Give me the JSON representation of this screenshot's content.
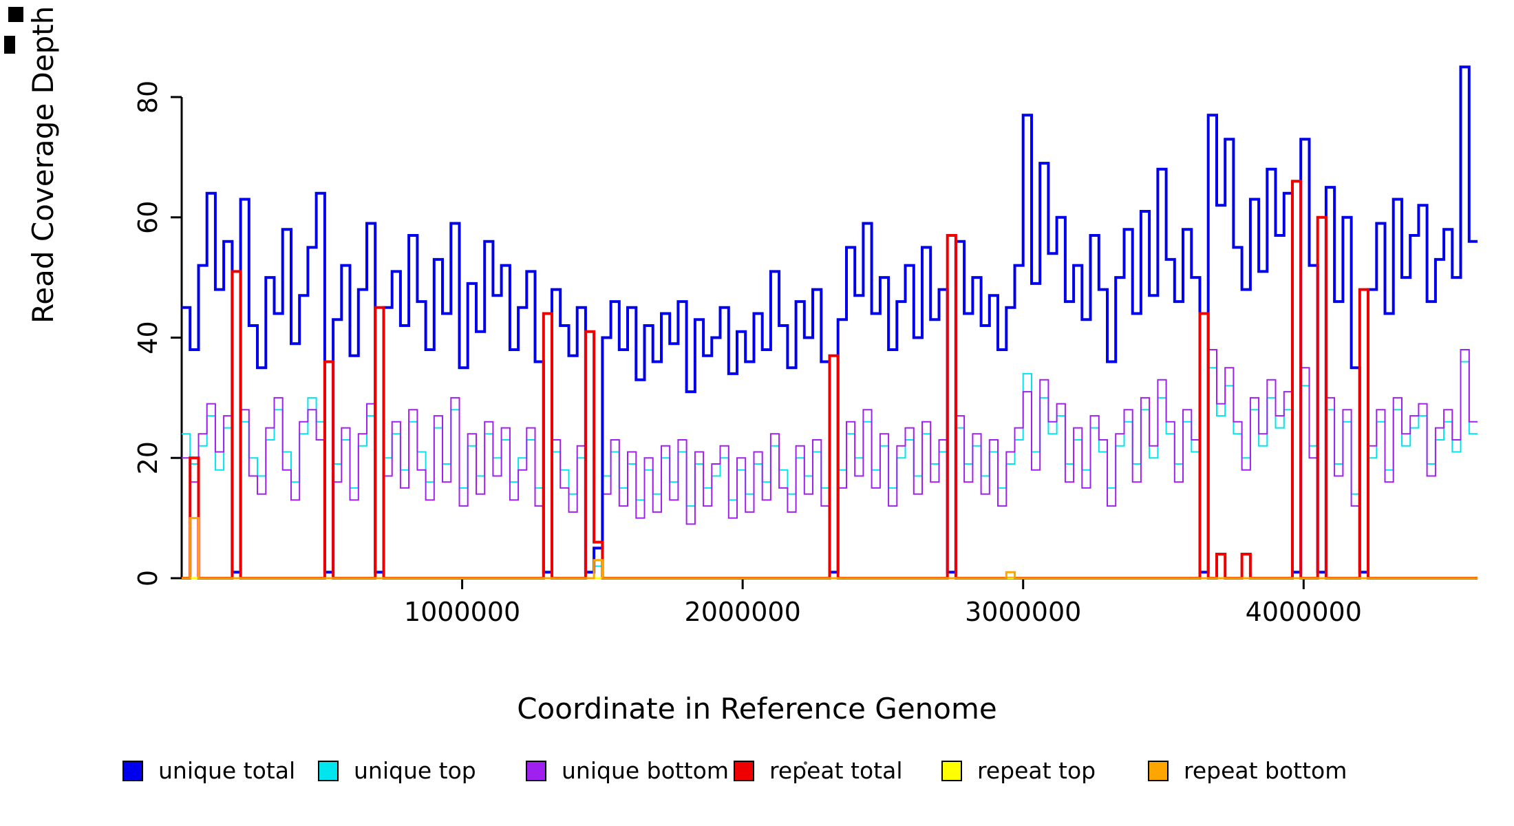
{
  "chart_data": {
    "type": "line",
    "subtype": "step",
    "title": "",
    "xlabel": "Coordinate in Reference Genome",
    "ylabel": "Read Coverage Depth",
    "xlim": [
      0,
      4620000
    ],
    "ylim": [
      0,
      85
    ],
    "x_ticks": [
      1000000,
      2000000,
      3000000,
      4000000
    ],
    "x_tick_labels": [
      "1000000",
      "2000000",
      "3000000",
      "4000000"
    ],
    "y_ticks": [
      0,
      20,
      40,
      60,
      80
    ],
    "y_tick_labels": [
      "0",
      "20",
      "40",
      "60",
      "80"
    ],
    "grid": false,
    "legend_position": "bottom",
    "x_start": 0,
    "x_step": 30000,
    "n_points": 154,
    "series": [
      {
        "name": "unique total",
        "color": "#0000EE",
        "values": [
          45,
          38,
          52,
          64,
          48,
          56,
          1,
          63,
          42,
          35,
          50,
          44,
          58,
          39,
          47,
          55,
          64,
          1,
          43,
          52,
          37,
          48,
          59,
          1,
          45,
          51,
          42,
          57,
          46,
          38,
          53,
          44,
          59,
          35,
          49,
          41,
          56,
          47,
          52,
          38,
          45,
          51,
          36,
          1,
          48,
          42,
          37,
          45,
          1,
          5,
          40,
          46,
          38,
          45,
          33,
          42,
          36,
          44,
          39,
          46,
          31,
          43,
          37,
          40,
          45,
          34,
          41,
          36,
          44,
          38,
          51,
          42,
          35,
          46,
          40,
          48,
          36,
          1,
          43,
          55,
          47,
          59,
          44,
          50,
          38,
          46,
          52,
          40,
          55,
          43,
          48,
          1,
          56,
          44,
          50,
          42,
          47,
          38,
          45,
          52,
          77,
          49,
          69,
          54,
          60,
          46,
          52,
          43,
          57,
          48,
          36,
          50,
          58,
          44,
          61,
          47,
          68,
          53,
          46,
          58,
          50,
          1,
          77,
          62,
          73,
          55,
          48,
          63,
          51,
          68,
          57,
          64,
          1,
          73,
          52,
          1,
          65,
          46,
          60,
          35,
          1,
          48,
          59,
          44,
          63,
          50,
          57,
          62,
          46,
          53,
          58,
          50,
          85,
          56
        ]
      },
      {
        "name": "unique top",
        "color": "#00E5EE",
        "values": [
          24,
          19,
          22,
          27,
          18,
          25,
          0,
          26,
          20,
          17,
          23,
          28,
          21,
          16,
          24,
          30,
          26,
          0,
          19,
          23,
          15,
          22,
          27,
          0,
          20,
          24,
          18,
          26,
          21,
          16,
          25,
          19,
          28,
          15,
          22,
          17,
          24,
          20,
          23,
          16,
          20,
          23,
          15,
          0,
          21,
          18,
          14,
          20,
          0,
          2,
          17,
          21,
          15,
          19,
          13,
          18,
          14,
          20,
          16,
          21,
          12,
          19,
          15,
          17,
          20,
          13,
          18,
          14,
          19,
          16,
          22,
          18,
          14,
          20,
          17,
          21,
          15,
          0,
          18,
          24,
          20,
          26,
          18,
          22,
          15,
          20,
          23,
          17,
          24,
          19,
          21,
          0,
          25,
          19,
          22,
          17,
          21,
          15,
          19,
          23,
          34,
          21,
          30,
          24,
          27,
          19,
          23,
          18,
          25,
          21,
          15,
          22,
          26,
          19,
          28,
          20,
          30,
          24,
          19,
          26,
          21,
          0,
          35,
          27,
          32,
          24,
          20,
          28,
          22,
          30,
          25,
          28,
          0,
          32,
          22,
          0,
          28,
          19,
          26,
          14,
          0,
          20,
          26,
          18,
          28,
          22,
          25,
          27,
          19,
          23,
          26,
          21,
          36,
          24
        ]
      },
      {
        "name": "unique bottom",
        "color": "#A020F0",
        "values": [
          20,
          16,
          24,
          29,
          21,
          27,
          0,
          28,
          17,
          14,
          25,
          30,
          18,
          13,
          26,
          28,
          23,
          0,
          16,
          25,
          13,
          24,
          29,
          0,
          17,
          26,
          15,
          28,
          18,
          13,
          27,
          16,
          30,
          12,
          24,
          14,
          26,
          17,
          25,
          13,
          18,
          25,
          12,
          0,
          23,
          15,
          11,
          22,
          0,
          3,
          14,
          23,
          12,
          21,
          10,
          20,
          11,
          22,
          13,
          23,
          9,
          21,
          12,
          19,
          22,
          10,
          20,
          11,
          21,
          13,
          24,
          15,
          11,
          22,
          14,
          23,
          12,
          0,
          15,
          26,
          17,
          28,
          15,
          24,
          12,
          22,
          25,
          14,
          26,
          16,
          23,
          0,
          27,
          16,
          24,
          14,
          23,
          12,
          21,
          25,
          31,
          18,
          33,
          26,
          29,
          16,
          25,
          15,
          27,
          23,
          12,
          24,
          28,
          16,
          30,
          22,
          33,
          26,
          16,
          28,
          23,
          0,
          38,
          29,
          35,
          26,
          18,
          30,
          24,
          33,
          27,
          31,
          0,
          35,
          20,
          0,
          30,
          17,
          28,
          12,
          0,
          22,
          28,
          16,
          30,
          24,
          27,
          29,
          17,
          25,
          28,
          23,
          38,
          26
        ]
      },
      {
        "name": "repeat total",
        "color": "#EE0000",
        "default": 0,
        "spikes": {
          "1": 20,
          "6": 51,
          "17": 36,
          "23": 45,
          "43": 44,
          "48": 41,
          "49": 6,
          "77": 37,
          "91": 57,
          "121": 44,
          "123": 4,
          "126": 4,
          "132": 66,
          "135": 60,
          "140": 48
        }
      },
      {
        "name": "repeat top",
        "color": "#FFFF00",
        "default": 0,
        "spikes": {}
      },
      {
        "name": "repeat bottom",
        "color": "#FFA500",
        "default": 0,
        "spikes": {
          "1": 10,
          "49": 3,
          "98": 1
        }
      }
    ]
  },
  "legend": [
    {
      "label": "unique total",
      "color": "#0000EE"
    },
    {
      "label": "unique top",
      "color": "#00E5EE"
    },
    {
      "label": "unique bottom",
      "color": "#A020F0"
    },
    {
      "label": "repeat total",
      "color": "#EE0000"
    },
    {
      "label": "repeat top",
      "color": "#FFFF00"
    },
    {
      "label": "repeat bottom",
      "color": "#FFA500"
    }
  ]
}
